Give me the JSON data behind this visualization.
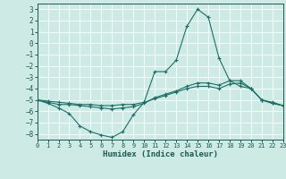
{
  "title": "",
  "xlabel": "Humidex (Indice chaleur)",
  "ylabel": "",
  "background_color": "#ceeae5",
  "line_color": "#1a7068",
  "grid_color": "#ffffff",
  "xlim": [
    0,
    23
  ],
  "ylim": [
    -8.5,
    3.5
  ],
  "xticks": [
    0,
    1,
    2,
    3,
    4,
    5,
    6,
    7,
    8,
    9,
    10,
    11,
    12,
    13,
    14,
    15,
    16,
    17,
    18,
    19,
    20,
    21,
    22,
    23
  ],
  "yticks": [
    3,
    2,
    1,
    0,
    -1,
    -2,
    -3,
    -4,
    -5,
    -6,
    -7,
    -8
  ],
  "line1_x": [
    0,
    1,
    2,
    3,
    4,
    5,
    6,
    7,
    8,
    9,
    10,
    11,
    12,
    13,
    14,
    15,
    16,
    17,
    18,
    19,
    20,
    21,
    22,
    23
  ],
  "line1_y": [
    -5.0,
    -5.3,
    -5.7,
    -6.2,
    -7.3,
    -7.8,
    -8.1,
    -8.3,
    -7.8,
    -6.3,
    -5.2,
    -2.5,
    -2.5,
    -1.5,
    1.5,
    3.0,
    2.3,
    -1.3,
    -3.3,
    -3.8,
    -4.0,
    -5.0,
    -5.3,
    -5.5
  ],
  "line2_x": [
    0,
    1,
    2,
    3,
    4,
    5,
    6,
    7,
    8,
    9,
    10,
    11,
    12,
    13,
    14,
    15,
    16,
    17,
    18,
    19,
    20,
    21,
    22,
    23
  ],
  "line2_y": [
    -5.0,
    -5.2,
    -5.4,
    -5.4,
    -5.5,
    -5.6,
    -5.7,
    -5.8,
    -5.7,
    -5.6,
    -5.3,
    -4.8,
    -4.5,
    -4.2,
    -3.8,
    -3.5,
    -3.5,
    -3.7,
    -3.3,
    -3.3,
    -4.0,
    -5.0,
    -5.3,
    -5.5
  ],
  "line3_x": [
    0,
    1,
    2,
    3,
    4,
    5,
    6,
    7,
    8,
    9,
    10,
    11,
    12,
    13,
    14,
    15,
    16,
    17,
    18,
    19,
    20,
    21,
    22,
    23
  ],
  "line3_y": [
    -5.0,
    -5.1,
    -5.2,
    -5.3,
    -5.4,
    -5.4,
    -5.5,
    -5.5,
    -5.4,
    -5.4,
    -5.2,
    -4.9,
    -4.6,
    -4.3,
    -4.0,
    -3.8,
    -3.8,
    -4.0,
    -3.6,
    -3.5,
    -4.0,
    -5.0,
    -5.2,
    -5.5
  ],
  "tick_fontsize": 5.5,
  "xlabel_fontsize": 6.5
}
